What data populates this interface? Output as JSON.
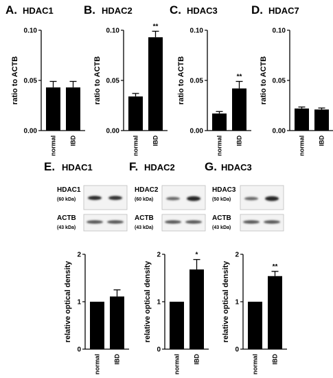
{
  "chart_data": [
    {
      "type": "bar",
      "letter": "A.",
      "title": "HDAC1",
      "ylabel": "ratio to ACTB",
      "ylim": [
        0,
        0.1
      ],
      "yticks": [
        "0.00",
        "0.05",
        "0.10"
      ],
      "categories": [
        "normal",
        "IBD"
      ],
      "values": [
        0.043,
        0.043
      ],
      "errors": [
        0.006,
        0.006
      ],
      "significance": [
        "",
        ""
      ]
    },
    {
      "type": "bar",
      "letter": "B.",
      "title": "HDAC2",
      "ylabel": "ratio to ACTB",
      "ylim": [
        0,
        0.1
      ],
      "yticks": [
        "0.00",
        "0.05",
        "0.10"
      ],
      "categories": [
        "normal",
        "IBD"
      ],
      "values": [
        0.034,
        0.093
      ],
      "errors": [
        0.003,
        0.006
      ],
      "significance": [
        "",
        "**"
      ]
    },
    {
      "type": "bar",
      "letter": "C.",
      "title": "HDAC3",
      "ylabel": "ratio to ACTB",
      "ylim": [
        0,
        0.1
      ],
      "yticks": [
        "0.00",
        "0.05",
        "0.10"
      ],
      "categories": [
        "normal",
        "IBD"
      ],
      "values": [
        0.017,
        0.042
      ],
      "errors": [
        0.002,
        0.007
      ],
      "significance": [
        "",
        "**"
      ]
    },
    {
      "type": "bar",
      "letter": "D.",
      "title": "HDAC7",
      "ylabel": "ratio to ACTB",
      "ylim": [
        0,
        0.1
      ],
      "yticks": [
        "0.00",
        "0.05",
        "0.10"
      ],
      "categories": [
        "normal",
        "IBD"
      ],
      "values": [
        0.022,
        0.021
      ],
      "errors": [
        0.0015,
        0.0015
      ],
      "significance": [
        "",
        ""
      ]
    },
    {
      "type": "bar",
      "letter": "E.",
      "title": "HDAC1",
      "ylabel": "relative optical density",
      "ylim": [
        0,
        2
      ],
      "yticks": [
        "0",
        "1",
        "2"
      ],
      "categories": [
        "normal",
        "IBD"
      ],
      "values": [
        1.0,
        1.11
      ],
      "errors": [
        0,
        0.14
      ],
      "significance": [
        "",
        ""
      ]
    },
    {
      "type": "bar",
      "letter": "F.",
      "title": "HDAC2",
      "ylabel": "relative optical density",
      "ylim": [
        0,
        2
      ],
      "yticks": [
        "0",
        "1",
        "2"
      ],
      "categories": [
        "normal",
        "IBD"
      ],
      "values": [
        1.0,
        1.68
      ],
      "errors": [
        0,
        0.21
      ],
      "significance": [
        "",
        "*"
      ]
    },
    {
      "type": "bar",
      "letter": "G.",
      "title": "HDAC3",
      "ylabel": "relative optical density",
      "ylim": [
        0,
        2
      ],
      "yticks": [
        "0",
        "1",
        "2"
      ],
      "categories": [
        "normal",
        "IBD"
      ],
      "values": [
        1.0,
        1.54
      ],
      "errors": [
        0,
        0.1
      ],
      "significance": [
        "",
        "**"
      ]
    }
  ],
  "blots": [
    {
      "panel": "E",
      "top": {
        "protein": "HDAC1",
        "size": "(60 kDa)"
      },
      "bottom": {
        "protein": "ACTB",
        "size": "(43 kDa)"
      }
    },
    {
      "panel": "F",
      "top": {
        "protein": "HDAC2",
        "size": "(60 kDa)"
      },
      "bottom": {
        "protein": "ACTB",
        "size": "(43 kDa)"
      }
    },
    {
      "panel": "G",
      "top": {
        "protein": "HDAC3",
        "size": "(50 kDa)"
      },
      "bottom": {
        "protein": "ACTB",
        "size": "(43 kDa)"
      }
    }
  ]
}
